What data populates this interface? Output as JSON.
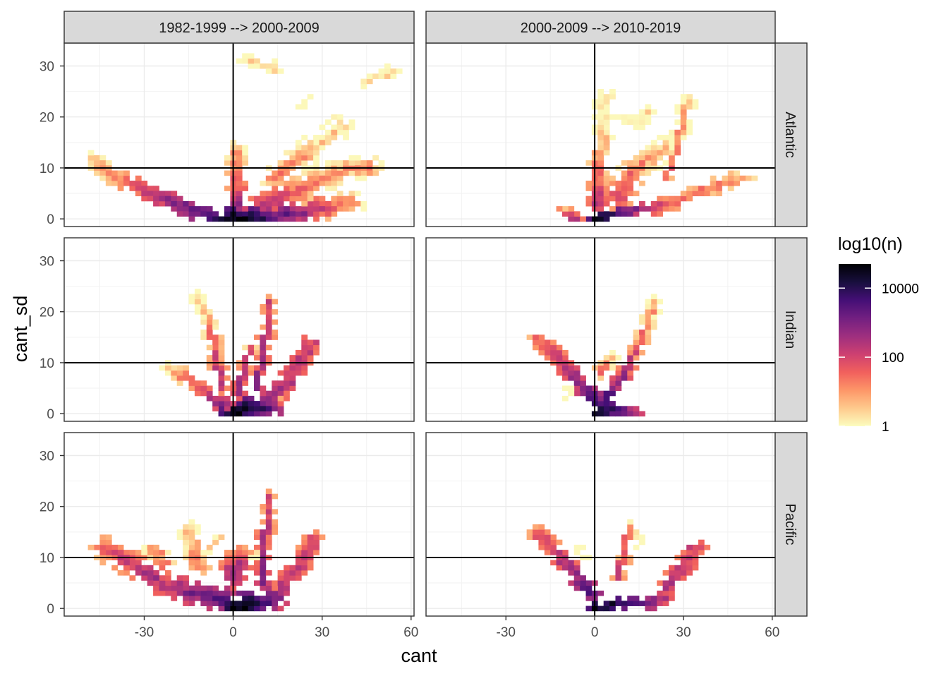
{
  "chart_data": {
    "type": "heatmap",
    "title": "",
    "xlabel": "cant",
    "ylabel": "cant_sd",
    "xlim": [
      -57,
      61
    ],
    "ylim": [
      -1.5,
      34.5
    ],
    "x_ticks": [
      -30,
      0,
      30,
      60
    ],
    "y_ticks": [
      0,
      10,
      20,
      30
    ],
    "reference_lines": {
      "x": 0,
      "y": 10
    },
    "bin_width": {
      "x": 2,
      "y": 1
    },
    "facet_cols": [
      "1982-1999 --> 2000-2009",
      "2000-2009 --> 2010-2019"
    ],
    "facet_rows": [
      "Atlantic",
      "Indian",
      "Pacific"
    ],
    "legend": {
      "title": "log10(n)",
      "placement": "right",
      "range_log10": [
        0,
        4.7
      ],
      "breaks": [
        {
          "label": "10000",
          "log10": 4
        },
        {
          "label": "100",
          "log10": 2
        },
        {
          "label": "1",
          "log10": 0
        }
      ],
      "colors": [
        "#fcfdbf",
        "#feca8d",
        "#fd9668",
        "#f1605d",
        "#cd4071",
        "#9e2f7f",
        "#721f81",
        "#440f76",
        "#180f3d",
        "#000004"
      ]
    },
    "panels": [
      {
        "row": "Atlantic",
        "col": "1982-1999 --> 2000-2009",
        "blobs": [
          {
            "pts": [
              [
                -48,
                12,
                0.8
              ],
              [
                -43,
                9,
                1.2
              ],
              [
                -36,
                7,
                1.8
              ],
              [
                -28,
                5,
                2.6
              ],
              [
                -20,
                3,
                3.0
              ],
              [
                -12,
                1,
                3.6
              ],
              [
                -4,
                0,
                4.2
              ]
            ],
            "w": 3
          },
          {
            "pts": [
              [
                0,
                0,
                4.7
              ],
              [
                10,
                0,
                3.8
              ],
              [
                20,
                1,
                3.0
              ],
              [
                30,
                2,
                2.0
              ],
              [
                40,
                3,
                1.2
              ]
            ],
            "w": 4
          },
          {
            "pts": [
              [
                0,
                2,
                3.0
              ],
              [
                2,
                6,
                2.0
              ],
              [
                0,
                10,
                1.5
              ],
              [
                0,
                14,
                1.0
              ]
            ],
            "w": 3
          },
          {
            "pts": [
              [
                10,
                3,
                2.5
              ],
              [
                20,
                5,
                1.8
              ],
              [
                30,
                8,
                1.2
              ],
              [
                40,
                10,
                1.0
              ],
              [
                46,
                10,
                1.2
              ]
            ],
            "w": 4
          },
          {
            "pts": [
              [
                14,
                8,
                1.4
              ],
              [
                22,
                12,
                1.0
              ],
              [
                30,
                15,
                0.6
              ],
              [
                36,
                18,
                0.4
              ]
            ],
            "w": 4
          },
          {
            "pts": [
              [
                4,
                31,
                0.3
              ],
              [
                12,
                30,
                0.4
              ],
              [
                16,
                29,
                0.2
              ]
            ],
            "w": 2
          },
          {
            "pts": [
              [
                44,
                27,
                0.3
              ],
              [
                50,
                28,
                0.4
              ],
              [
                54,
                29,
                0.3
              ]
            ],
            "w": 2
          },
          {
            "pts": [
              [
                22,
                22,
                0.2
              ],
              [
                24,
                24,
                0.1
              ]
            ],
            "w": 1
          },
          {
            "pts": [
              [
                34,
                20,
                0.3
              ],
              [
                38,
                18,
                0.2
              ]
            ],
            "w": 2
          }
        ]
      },
      {
        "row": "Atlantic",
        "col": "2000-2009 --> 2010-2019",
        "blobs": [
          {
            "pts": [
              [
                0,
                0,
                4.7
              ],
              [
                8,
                1,
                3.6
              ],
              [
                16,
                2,
                2.6
              ],
              [
                26,
                3,
                1.8
              ],
              [
                34,
                5,
                1.6
              ],
              [
                44,
                7,
                1.4
              ],
              [
                50,
                8,
                1.2
              ]
            ],
            "w": 3
          },
          {
            "pts": [
              [
                -6,
                0,
                2.5
              ],
              [
                -10,
                1,
                1.6
              ],
              [
                -12,
                2,
                1.0
              ]
            ],
            "w": 2
          },
          {
            "pts": [
              [
                0,
                3,
                2.6
              ],
              [
                0,
                8,
                1.8
              ],
              [
                2,
                14,
                1.0
              ],
              [
                2,
                20,
                0.4
              ],
              [
                4,
                24,
                0.2
              ]
            ],
            "w": 3
          },
          {
            "pts": [
              [
                8,
                4,
                2.2
              ],
              [
                12,
                9,
                1.5
              ],
              [
                18,
                12,
                1.0
              ],
              [
                24,
                14,
                0.6
              ]
            ],
            "w": 4
          },
          {
            "pts": [
              [
                24,
                8,
                1.6
              ],
              [
                28,
                14,
                1.2
              ],
              [
                30,
                20,
                0.8
              ],
              [
                32,
                24,
                0.3
              ]
            ],
            "w": 2
          },
          {
            "pts": [
              [
                10,
                20,
                0.3
              ],
              [
                14,
                18,
                0.2
              ],
              [
                18,
                21,
                0.3
              ]
            ],
            "w": 2
          }
        ]
      },
      {
        "row": "Indian",
        "col": "1982-1999 --> 2000-2009",
        "blobs": [
          {
            "pts": [
              [
                0,
                0,
                4.7
              ],
              [
                6,
                1,
                4.0
              ],
              [
                12,
                1,
                3.4
              ]
            ],
            "w": 4
          },
          {
            "pts": [
              [
                -4,
                2,
                3.0
              ],
              [
                -10,
                4,
                2.2
              ],
              [
                -16,
                7,
                1.5
              ],
              [
                -22,
                9,
                0.8
              ]
            ],
            "w": 3
          },
          {
            "pts": [
              [
                -4,
                5,
                2.4
              ],
              [
                -6,
                12,
                1.8
              ],
              [
                -8,
                18,
                1.2
              ],
              [
                -12,
                23,
                0.5
              ]
            ],
            "w": 2
          },
          {
            "pts": [
              [
                2,
                4,
                2.8
              ],
              [
                4,
                10,
                2.0
              ],
              [
                6,
                13,
                1.4
              ]
            ],
            "w": 2
          },
          {
            "pts": [
              [
                8,
                5,
                3.0
              ],
              [
                10,
                12,
                2.4
              ],
              [
                12,
                18,
                2.0
              ],
              [
                12,
                22,
                2.0
              ]
            ],
            "w": 2
          },
          {
            "pts": [
              [
                12,
                3,
                3.0
              ],
              [
                18,
                6,
                2.6
              ],
              [
                24,
                12,
                2.4
              ],
              [
                26,
                14,
                2.2
              ]
            ],
            "w": 3
          },
          {
            "pts": [
              [
                16,
                1,
                2.0
              ],
              [
                18,
                4,
                1.0
              ]
            ],
            "w": 2
          }
        ]
      },
      {
        "row": "Indian",
        "col": "2000-2009 --> 2010-2019",
        "blobs": [
          {
            "pts": [
              [
                0,
                0,
                4.7
              ],
              [
                6,
                1,
                4.0
              ],
              [
                12,
                0,
                3.0
              ]
            ],
            "w": 3
          },
          {
            "pts": [
              [
                0,
                2,
                3.8
              ],
              [
                -4,
                5,
                3.0
              ],
              [
                -10,
                9,
                2.4
              ],
              [
                -16,
                13,
                2.0
              ],
              [
                -20,
                15,
                1.8
              ]
            ],
            "w": 3
          },
          {
            "pts": [
              [
                4,
                3,
                3.6
              ],
              [
                8,
                6,
                2.8
              ],
              [
                12,
                10,
                2.2
              ],
              [
                16,
                15,
                1.6
              ],
              [
                20,
                22,
                0.8
              ]
            ],
            "w": 2
          },
          {
            "pts": [
              [
                2,
                8,
                1.6
              ],
              [
                6,
                11,
                1.0
              ]
            ],
            "w": 2
          },
          {
            "pts": [
              [
                -8,
                5,
                1.0
              ],
              [
                -10,
                3,
                0.6
              ]
            ],
            "w": 1
          }
        ]
      },
      {
        "row": "Pacific",
        "col": "1982-1999 --> 2000-2009",
        "blobs": [
          {
            "pts": [
              [
                0,
                0,
                4.7
              ],
              [
                8,
                1,
                4.0
              ],
              [
                14,
                2,
                3.0
              ]
            ],
            "w": 4
          },
          {
            "pts": [
              [
                -4,
                2,
                3.6
              ],
              [
                -14,
                3,
                3.0
              ],
              [
                -22,
                4,
                2.6
              ],
              [
                -30,
                7,
                2.4
              ],
              [
                -38,
                10,
                2.0
              ],
              [
                -44,
                12,
                1.8
              ]
            ],
            "w": 4
          },
          {
            "pts": [
              [
                -12,
                8,
                1.6
              ],
              [
                -14,
                13,
                1.0
              ],
              [
                -16,
                16,
                0.6
              ]
            ],
            "w": 3
          },
          {
            "pts": [
              [
                -24,
                9,
                1.4
              ],
              [
                -28,
                12,
                1.2
              ]
            ],
            "w": 3
          },
          {
            "pts": [
              [
                0,
                6,
                2.8
              ],
              [
                2,
                10,
                2.0
              ]
            ],
            "w": 4
          },
          {
            "pts": [
              [
                10,
                5,
                3.0
              ],
              [
                10,
                12,
                2.4
              ],
              [
                12,
                18,
                2.0
              ],
              [
                12,
                22,
                2.0
              ]
            ],
            "w": 2
          },
          {
            "pts": [
              [
                16,
                4,
                2.6
              ],
              [
                22,
                8,
                2.4
              ],
              [
                26,
                12,
                2.2
              ],
              [
                26,
                14,
                2.0
              ]
            ],
            "w": 3
          },
          {
            "pts": [
              [
                -8,
                12,
                0.8
              ],
              [
                -4,
                14,
                0.5
              ]
            ],
            "w": 2
          },
          {
            "pts": [
              [
                6,
                11,
                1.2
              ],
              [
                8,
                10,
                1.0
              ]
            ],
            "w": 1
          }
        ]
      },
      {
        "row": "Pacific",
        "col": "2000-2009 --> 2010-2019",
        "blobs": [
          {
            "pts": [
              [
                0,
                0,
                4.7
              ],
              [
                8,
                1,
                4.2
              ],
              [
                16,
                1,
                3.4
              ],
              [
                22,
                2,
                2.6
              ]
            ],
            "w": 3
          },
          {
            "pts": [
              [
                -2,
                3,
                3.6
              ],
              [
                -6,
                6,
                3.0
              ],
              [
                -12,
                10,
                2.4
              ],
              [
                -18,
                14,
                2.0
              ],
              [
                -20,
                15,
                1.8
              ]
            ],
            "w": 3
          },
          {
            "pts": [
              [
                24,
                4,
                2.6
              ],
              [
                30,
                8,
                2.4
              ],
              [
                34,
                12,
                2.2
              ]
            ],
            "w": 3
          },
          {
            "pts": [
              [
                8,
                6,
                2.0
              ],
              [
                10,
                12,
                1.6
              ],
              [
                12,
                16,
                1.2
              ]
            ],
            "w": 2
          },
          {
            "pts": [
              [
                14,
                12,
                0.8
              ],
              [
                16,
                15,
                0.4
              ]
            ],
            "w": 1
          },
          {
            "pts": [
              [
                -6,
                12,
                0.6
              ],
              [
                -4,
                10,
                0.8
              ]
            ],
            "w": 1
          }
        ]
      }
    ]
  }
}
